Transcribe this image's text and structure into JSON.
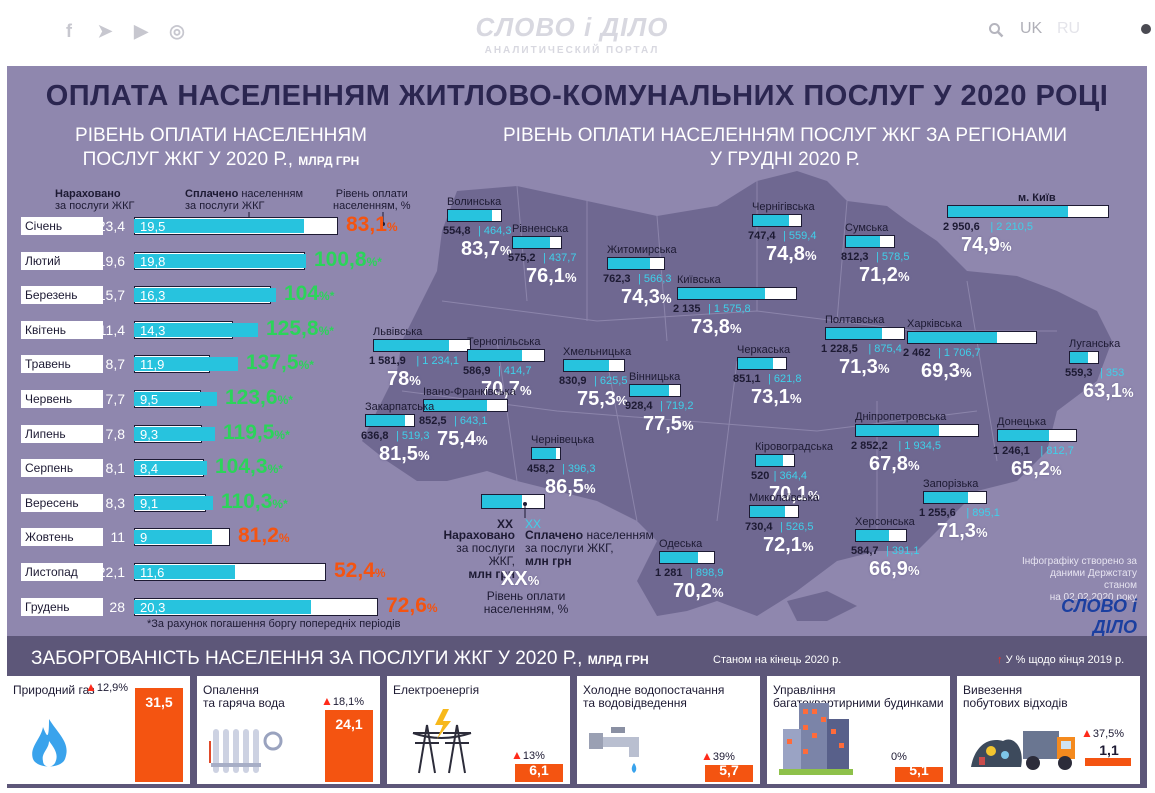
{
  "site": {
    "logo_main": "СЛОВО і ДІЛО",
    "logo_sub": "АНАЛИТИЧЕСКИЙ ПОРТАЛ",
    "social_icons": [
      "facebook-icon",
      "telegram-icon",
      "youtube-icon",
      "instagram-icon"
    ],
    "lang_uk": "UK",
    "lang_ru": "RU"
  },
  "main_title": "ОПЛАТА НАСЕЛЕННЯМ ЖИТЛОВО-КОМУНАЛЬНИХ ПОСЛУГ У 2020 РОЦІ",
  "left": {
    "title_line1": "РІВЕНЬ ОПЛАТИ НАСЕЛЕННЯМ",
    "title_line2": "ПОСЛУГ ЖКГ У 2020 Р.,",
    "title_unit": "МЛРД ГРН",
    "hdr_accrued_bold": "Нараховано",
    "hdr_accrued_rest": "за послуги ЖКГ",
    "hdr_paid_bold": "Сплачено",
    "hdr_paid_rest1": "населенням",
    "hdr_paid_rest2": "за послуги ЖКГ",
    "hdr_level1": "Рівень оплати",
    "hdr_level2": "населенням, %",
    "footnote": "*За рахунок погашення боргу попередніх періодів"
  },
  "chart_data": {
    "type": "bar",
    "categories": [
      "Січень",
      "Лютий",
      "Березень",
      "Квітень",
      "Травень",
      "Червень",
      "Липень",
      "Серпень",
      "Вересень",
      "Жовтень",
      "Листопад",
      "Грудень"
    ],
    "series": [
      {
        "name": "Нараховано за послуги ЖКГ",
        "values": [
          23.4,
          19.6,
          15.7,
          11.4,
          8.7,
          7.7,
          7.8,
          8.1,
          8.3,
          11,
          22.1,
          28
        ]
      },
      {
        "name": "Сплачено населенням за послуги ЖКГ",
        "values": [
          19.5,
          19.8,
          16.3,
          14.3,
          11.9,
          9.5,
          9.3,
          8.4,
          9.1,
          9,
          11.6,
          20.3
        ]
      }
    ],
    "accrued_text": [
      "23,4",
      "19,6",
      "15,7",
      "11,4",
      "8,7",
      "7,7",
      "7,8",
      "8,1",
      "8,3",
      "11",
      "22,1",
      "28"
    ],
    "paid_text": [
      "19,5",
      "19,8",
      "16,3",
      "14,3",
      "11,9",
      "9,5",
      "9,3",
      "8,4",
      "9,1",
      "9",
      "11,6",
      "20,3"
    ],
    "level_text": [
      "83,1",
      "100,8",
      "104",
      "125,8",
      "137,5",
      "123,6",
      "119,5",
      "104,3",
      "110,3",
      "81,2",
      "52,4",
      "72,6"
    ],
    "level_suffix": [
      "%",
      "%*",
      "%*",
      "%*",
      "%*",
      "%*",
      "%*",
      "%*",
      "%*",
      "%",
      "%",
      "%"
    ],
    "level_colors": [
      "#f45411",
      "#2bd45a",
      "#2bd45a",
      "#2bd45a",
      "#2bd45a",
      "#2bd45a",
      "#2bd45a",
      "#2bd45a",
      "#2bd45a",
      "#f45411",
      "#f45411",
      "#f45411"
    ],
    "title": "РІВЕНЬ ОПЛАТИ НАСЕЛЕННЯМ ПОСЛУГ ЖКГ У 2020 Р., МЛРД ГРН"
  },
  "map": {
    "title_line1": "РІВЕНЬ ОПЛАТИ НАСЕЛЕННЯМ ПОСЛУГ ЖКГ ЗА РЕГІОНАМИ",
    "title_line2": "У ГРУДНІ 2020 Р.",
    "regions": [
      {
        "name": "Волинська",
        "acc": "554,8",
        "paid": "464,3",
        "pct": "83,7"
      },
      {
        "name": "Рівненська",
        "acc": "575,2",
        "paid": "437,7",
        "pct": "76,1"
      },
      {
        "name": "Житомирська",
        "acc": "762,3",
        "paid": "566,3",
        "pct": "74,3"
      },
      {
        "name": "Чернігівська",
        "acc": "747,4",
        "paid": "559,4",
        "pct": "74,8"
      },
      {
        "name": "Сумська",
        "acc": "812,3",
        "paid": "578,5",
        "pct": "71,2"
      },
      {
        "name": "м. Київ",
        "acc": "2 950,6",
        "paid": "2 210,5",
        "pct": "74,9"
      },
      {
        "name": "Київська",
        "acc": "2 135",
        "paid": "1 575,8",
        "pct": "73,8"
      },
      {
        "name": "Львівська",
        "acc": "1 581,9",
        "paid": "1 234,1",
        "pct": "78"
      },
      {
        "name": "Тернопільська",
        "acc": "586,9",
        "paid": "414,7",
        "pct": "70,7"
      },
      {
        "name": "Хмельницька",
        "acc": "830,9",
        "paid": "625,5",
        "pct": "75,3"
      },
      {
        "name": "Полтавська",
        "acc": "1 228,5",
        "paid": "875,4",
        "pct": "71,3"
      },
      {
        "name": "Харківська",
        "acc": "2 462",
        "paid": "1 706,7",
        "pct": "69,3"
      },
      {
        "name": "Луганська",
        "acc": "559,3",
        "paid": "353",
        "pct": "63,1"
      },
      {
        "name": "Черкаська",
        "acc": "851,1",
        "paid": "621,8",
        "pct": "73,1"
      },
      {
        "name": "Вінницька",
        "acc": "928,4",
        "paid": "719,2",
        "pct": "77,5"
      },
      {
        "name": "Івано-Франківська",
        "acc": "852,5",
        "paid": "643,1",
        "pct": "75,4"
      },
      {
        "name": "Закарпатська",
        "acc": "636,8",
        "paid": "519,3",
        "pct": "81,5"
      },
      {
        "name": "Чернівецька",
        "acc": "458,2",
        "paid": "396,3",
        "pct": "86,5"
      },
      {
        "name": "Кіровоградська",
        "acc": "520",
        "paid": "364,4",
        "pct": "70,1"
      },
      {
        "name": "Дніпропетровська",
        "acc": "2 852,2",
        "paid": "1 934,5",
        "pct": "67,8"
      },
      {
        "name": "Донецька",
        "acc": "1 246,1",
        "paid": "812,7",
        "pct": "65,2"
      },
      {
        "name": "Запорізька",
        "acc": "1 255,6",
        "paid": "895,1",
        "pct": "71,3"
      },
      {
        "name": "Миколаївська",
        "acc": "730,4",
        "paid": "526,5",
        "pct": "72,1"
      },
      {
        "name": "Херсонська",
        "acc": "584,7",
        "paid": "391,1",
        "pct": "66,9"
      },
      {
        "name": "Одеська",
        "acc": "1 281",
        "paid": "898,9",
        "pct": "70,2"
      }
    ],
    "legend": {
      "xx1": "ХХ",
      "xx2": "ХХ",
      "acc_bold": "Нараховано",
      "acc_rest1": "за послуги ЖКГ,",
      "acc_rest2": "млн грн",
      "paid_bold": "Сплачено",
      "paid_rest0": "населенням",
      "paid_rest1": "за послуги ЖКГ,",
      "paid_rest2": "млн грн",
      "xx_pct": "ХХ",
      "pct_suffix": "%",
      "lvl1": "Рівень оплати",
      "lvl2": "населенням, %"
    },
    "credit_line1": "Інфографіку створено за",
    "credit_line2": "даними Держстату станом",
    "credit_line3": "на 02.02.2020 року",
    "credit_logo": "СЛОВО і ДІЛО"
  },
  "debt": {
    "title": "ЗАБОРГОВАНІСТЬ НАСЕЛЕННЯ ЗА ПОСЛУГИ ЖКГ У 2020 Р.,",
    "unit": "МЛРД ГРН",
    "as_of": "Станом на кінець 2020 р.",
    "legend_arrow": "↑",
    "legend_text": "У % щодо кінця 2019 р.",
    "items": [
      {
        "name1": "Природний газ",
        "name2": "",
        "value": "31,5",
        "change": "12,9%",
        "level": 1.0,
        "icon": "gas-flame-icon"
      },
      {
        "name1": "Опалення",
        "name2": "та гаряча вода",
        "value": "24,1",
        "change": "18,1%",
        "level": 0.765,
        "icon": "radiator-icon"
      },
      {
        "name1": "Електроенергія",
        "name2": "",
        "value": "6,1",
        "change": "13%",
        "level": 0.194,
        "icon": "power-tower-icon"
      },
      {
        "name1": "Холодне водопостачання",
        "name2": "та водовідведення",
        "value": "5,7",
        "change": "39%",
        "level": 0.181,
        "icon": "water-tap-icon"
      },
      {
        "name1": "Управління",
        "name2": "багатоквартирними будинками",
        "value": "5,1",
        "change": "0%",
        "level": 0.162,
        "icon": "apartment-building-icon"
      },
      {
        "name1": "Вивезення",
        "name2": "побутових відходів",
        "value": "1,1",
        "change": "37,5%",
        "level": 0.035,
        "icon": "garbage-truck-icon"
      }
    ]
  },
  "colors": {
    "panel": "#8f87ae",
    "map": "#6f6891",
    "bar_fill": "#27c3de",
    "green": "#2bd45a",
    "orange": "#f45411",
    "dark": "#1d1a33"
  }
}
